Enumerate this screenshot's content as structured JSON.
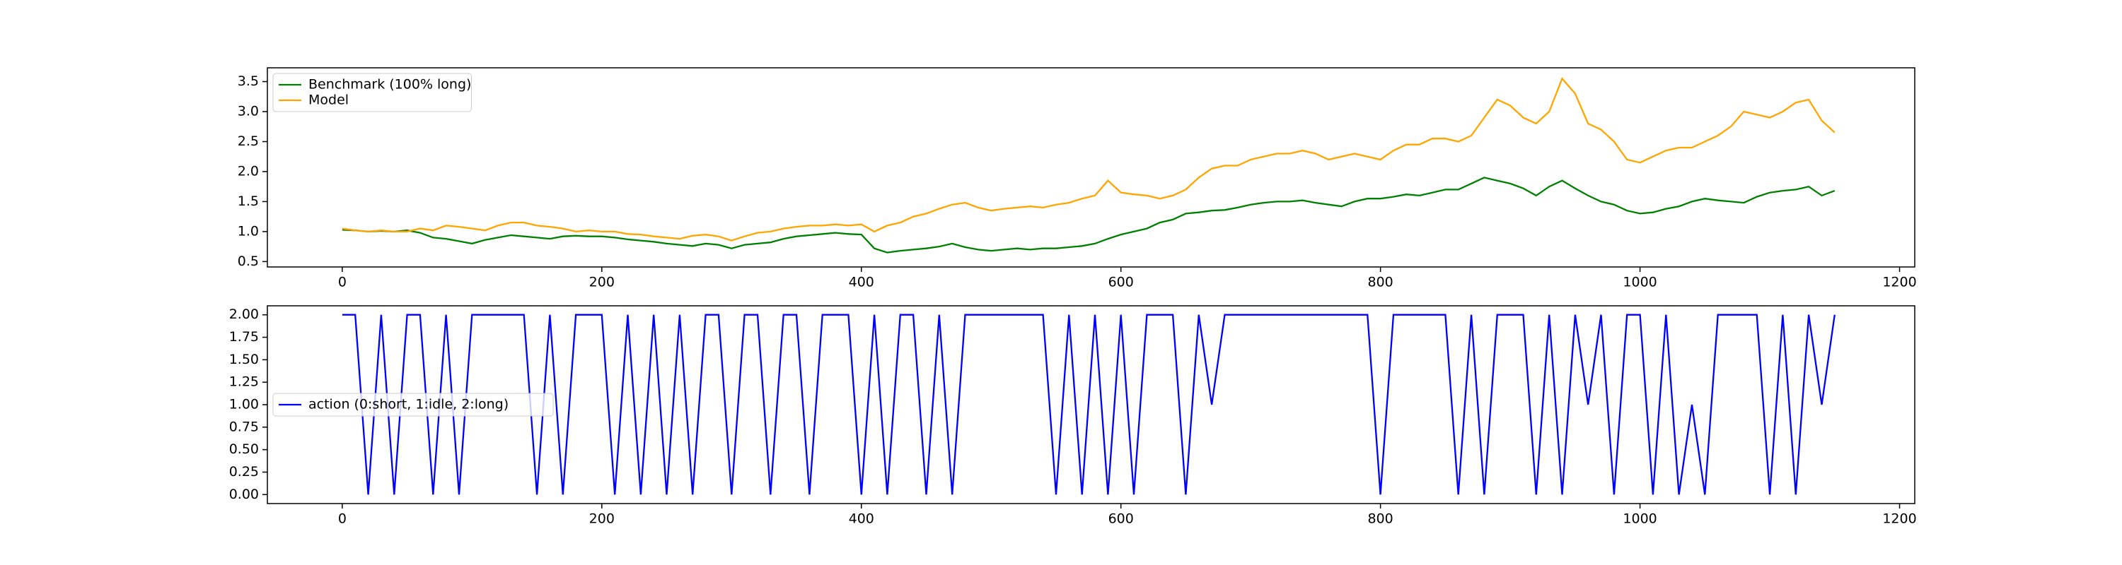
{
  "chart_data": [
    {
      "type": "line",
      "x": [
        0,
        10,
        20,
        30,
        40,
        50,
        60,
        70,
        80,
        90,
        100,
        110,
        120,
        130,
        140,
        150,
        160,
        170,
        180,
        190,
        200,
        210,
        220,
        230,
        240,
        250,
        260,
        270,
        280,
        290,
        300,
        310,
        320,
        330,
        340,
        350,
        360,
        370,
        380,
        390,
        400,
        410,
        420,
        430,
        440,
        450,
        460,
        470,
        480,
        490,
        500,
        510,
        520,
        530,
        540,
        550,
        560,
        570,
        580,
        590,
        600,
        610,
        620,
        630,
        640,
        650,
        660,
        670,
        680,
        690,
        700,
        710,
        720,
        730,
        740,
        750,
        760,
        770,
        780,
        790,
        800,
        810,
        820,
        830,
        840,
        850,
        860,
        870,
        880,
        890,
        900,
        910,
        920,
        930,
        940,
        950,
        960,
        970,
        980,
        990,
        1000,
        1010,
        1020,
        1030,
        1040,
        1050,
        1060,
        1070,
        1080,
        1090,
        1100,
        1110,
        1120,
        1130,
        1140,
        1150
      ],
      "series": [
        {
          "name": "Benchmark (100% long)",
          "color": "green",
          "values": [
            1.03,
            1.02,
            1.0,
            1.01,
            1.0,
            1.02,
            0.98,
            0.9,
            0.88,
            0.84,
            0.8,
            0.86,
            0.9,
            0.94,
            0.92,
            0.9,
            0.88,
            0.92,
            0.93,
            0.92,
            0.92,
            0.9,
            0.87,
            0.85,
            0.83,
            0.8,
            0.78,
            0.76,
            0.8,
            0.78,
            0.72,
            0.78,
            0.8,
            0.82,
            0.88,
            0.92,
            0.94,
            0.96,
            0.98,
            0.96,
            0.95,
            0.72,
            0.65,
            0.68,
            0.7,
            0.72,
            0.75,
            0.8,
            0.74,
            0.7,
            0.68,
            0.7,
            0.72,
            0.7,
            0.72,
            0.72,
            0.74,
            0.76,
            0.8,
            0.88,
            0.95,
            1.0,
            1.05,
            1.15,
            1.2,
            1.3,
            1.32,
            1.35,
            1.36,
            1.4,
            1.45,
            1.48,
            1.5,
            1.5,
            1.52,
            1.48,
            1.45,
            1.42,
            1.5,
            1.55,
            1.55,
            1.58,
            1.62,
            1.6,
            1.65,
            1.7,
            1.7,
            1.8,
            1.9,
            1.85,
            1.8,
            1.72,
            1.6,
            1.75,
            1.85,
            1.72,
            1.6,
            1.5,
            1.45,
            1.35,
            1.3,
            1.32,
            1.38,
            1.42,
            1.5,
            1.55,
            1.52,
            1.5,
            1.48,
            1.58,
            1.65,
            1.68,
            1.7,
            1.75,
            1.6,
            1.68
          ]
        },
        {
          "name": "Model",
          "color": "orange",
          "values": [
            1.05,
            1.02,
            1.0,
            1.02,
            1.0,
            1.0,
            1.05,
            1.02,
            1.1,
            1.08,
            1.05,
            1.02,
            1.1,
            1.15,
            1.15,
            1.1,
            1.08,
            1.05,
            1.0,
            1.02,
            1.0,
            1.0,
            0.96,
            0.95,
            0.92,
            0.9,
            0.88,
            0.93,
            0.95,
            0.92,
            0.85,
            0.92,
            0.98,
            1.0,
            1.05,
            1.08,
            1.1,
            1.1,
            1.12,
            1.1,
            1.12,
            1.0,
            1.1,
            1.15,
            1.25,
            1.3,
            1.38,
            1.45,
            1.48,
            1.4,
            1.35,
            1.38,
            1.4,
            1.42,
            1.4,
            1.45,
            1.48,
            1.55,
            1.6,
            1.85,
            1.65,
            1.62,
            1.6,
            1.55,
            1.6,
            1.7,
            1.9,
            2.05,
            2.1,
            2.1,
            2.2,
            2.25,
            2.3,
            2.3,
            2.35,
            2.3,
            2.2,
            2.25,
            2.3,
            2.25,
            2.2,
            2.35,
            2.45,
            2.45,
            2.55,
            2.55,
            2.5,
            2.6,
            2.9,
            3.2,
            3.1,
            2.9,
            2.8,
            3.0,
            3.55,
            3.3,
            2.8,
            2.7,
            2.5,
            2.2,
            2.15,
            2.25,
            2.35,
            2.4,
            2.4,
            2.5,
            2.6,
            2.75,
            3.0,
            2.95,
            2.9,
            3.0,
            3.15,
            3.2,
            2.85,
            2.65
          ]
        }
      ],
      "xlim": [
        -57.7,
        1211.7
      ],
      "xticks": [
        0,
        200,
        400,
        600,
        800,
        1000,
        1200
      ],
      "ylim": [
        0.41,
        3.73
      ],
      "yticks": [
        0.5,
        {
          "value": 1,
          "label": "1.0"
        },
        1.5,
        {
          "value": 2,
          "label": "2.0"
        },
        2.5,
        {
          "value": 3,
          "label": "3.0"
        },
        3.5
      ],
      "legend": "upper left"
    },
    {
      "type": "line",
      "x": [
        0,
        10,
        20,
        30,
        40,
        50,
        60,
        70,
        80,
        90,
        100,
        110,
        120,
        130,
        140,
        150,
        160,
        170,
        180,
        190,
        200,
        210,
        220,
        230,
        240,
        250,
        260,
        270,
        280,
        290,
        300,
        310,
        320,
        330,
        340,
        350,
        360,
        370,
        380,
        390,
        400,
        410,
        420,
        430,
        440,
        450,
        460,
        470,
        480,
        490,
        500,
        510,
        520,
        530,
        540,
        550,
        560,
        570,
        580,
        590,
        600,
        610,
        620,
        630,
        640,
        650,
        660,
        670,
        680,
        690,
        700,
        710,
        720,
        730,
        740,
        750,
        760,
        770,
        780,
        790,
        800,
        810,
        820,
        830,
        840,
        850,
        860,
        870,
        880,
        890,
        900,
        910,
        920,
        930,
        940,
        950,
        960,
        970,
        980,
        990,
        1000,
        1010,
        1020,
        1030,
        1040,
        1050,
        1060,
        1070,
        1080,
        1090,
        1100,
        1110,
        1120,
        1130,
        1140,
        1150
      ],
      "series": [
        {
          "name": "action (0:short, 1:idle, 2:long)",
          "color": "blue",
          "values": [
            2,
            2,
            0,
            2,
            0,
            2,
            2,
            0,
            2,
            0,
            2,
            2,
            2,
            2,
            2,
            0,
            2,
            0,
            2,
            2,
            2,
            0,
            2,
            0,
            2,
            0,
            2,
            0,
            2,
            2,
            0,
            2,
            2,
            0,
            2,
            2,
            0,
            2,
            2,
            2,
            0,
            2,
            0,
            2,
            2,
            0,
            2,
            0,
            2,
            2,
            2,
            2,
            2,
            2,
            2,
            0,
            2,
            0,
            2,
            0,
            2,
            0,
            2,
            2,
            2,
            0,
            2,
            1,
            2,
            2,
            2,
            2,
            2,
            2,
            2,
            2,
            2,
            2,
            2,
            2,
            0,
            2,
            2,
            2,
            2,
            2,
            0,
            2,
            0,
            2,
            2,
            2,
            0,
            2,
            0,
            2,
            1,
            2,
            0,
            2,
            2,
            0,
            2,
            0,
            1,
            0,
            2,
            2,
            2,
            2,
            0,
            2,
            0,
            2,
            1,
            2
          ]
        }
      ],
      "xlim": [
        -57.7,
        1211.7
      ],
      "xticks": [
        0,
        200,
        400,
        600,
        800,
        1000,
        1200
      ],
      "ylim": [
        -0.1,
        2.1
      ],
      "yticks": [
        {
          "value": 0,
          "label": "0.00"
        },
        {
          "value": 0.25,
          "label": "0.25"
        },
        {
          "value": 0.5,
          "label": "0.50"
        },
        {
          "value": 0.75,
          "label": "0.75"
        },
        {
          "value": 1,
          "label": "1.00"
        },
        {
          "value": 1.25,
          "label": "1.25"
        },
        {
          "value": 1.5,
          "label": "1.50"
        },
        {
          "value": 1.75,
          "label": "1.75"
        },
        {
          "value": 2,
          "label": "2.00"
        }
      ],
      "legend": "center left"
    }
  ]
}
